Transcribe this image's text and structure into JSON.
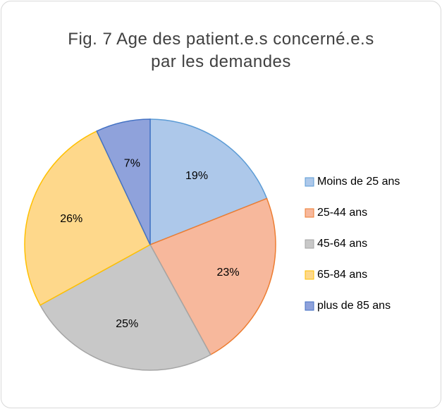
{
  "chart_data": {
    "type": "pie",
    "title": "Fig. 7 Age des patient.e.s concerné.e.s par les demandes",
    "categories": [
      "Moins de 25 ans",
      "25-44 ans",
      "45-64 ans",
      "65-84 ans",
      "plus de 85 ans"
    ],
    "values": [
      19,
      23,
      25,
      26,
      7
    ],
    "value_labels": [
      "19%",
      "23%",
      "25%",
      "26%",
      "7%"
    ],
    "colors": [
      "#adc8ea",
      "#f7b89c",
      "#c8c8c8",
      "#fed88b",
      "#8fa2db"
    ],
    "edge_colors": [
      "#5b9bd5",
      "#ed7d31",
      "#a5a5a5",
      "#ffc000",
      "#4472c4"
    ],
    "legend": "right"
  }
}
